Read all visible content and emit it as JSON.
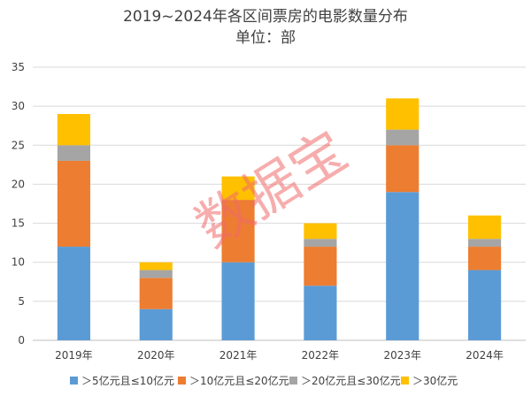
{
  "chart_data": {
    "type": "bar",
    "stacked": true,
    "title": "2019~2024年各区间票房的电影数量分布",
    "subtitle": "单位：部",
    "categories": [
      "2019年",
      "2020年",
      "2021年",
      "2022年",
      "2023年",
      "2024年"
    ],
    "series": [
      {
        "name": "＞5亿元且≤10亿元",
        "color": "#5b9bd5",
        "values": [
          12,
          4,
          10,
          7,
          19,
          9
        ]
      },
      {
        "name": "＞10亿元且≤20亿元",
        "color": "#ed7d31",
        "values": [
          11,
          4,
          8,
          5,
          6,
          3
        ]
      },
      {
        "name": "＞20亿元且≤30亿元",
        "color": "#a5a5a5",
        "values": [
          2,
          1,
          0,
          1,
          2,
          1
        ]
      },
      {
        "name": "＞30亿元",
        "color": "#ffc000",
        "values": [
          4,
          1,
          3,
          2,
          4,
          3
        ]
      }
    ],
    "ylim": [
      0,
      35
    ],
    "yticks": [
      0,
      5,
      10,
      15,
      20,
      25,
      30,
      35
    ],
    "grid": true,
    "legend": "bottom",
    "xlabel": "",
    "ylabel": ""
  },
  "watermark": "数据宝"
}
